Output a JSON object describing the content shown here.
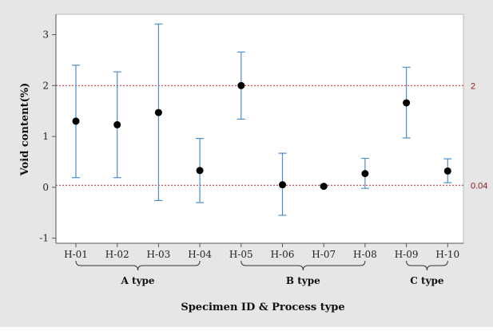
{
  "chart_data": {
    "type": "scatter",
    "title": "",
    "xlabel": "Specimen ID & Process type",
    "ylabel": "Void content(%)",
    "ylim": [
      -1.1,
      3.4
    ],
    "yticks": [
      -1,
      0,
      1,
      2,
      3
    ],
    "grid": false,
    "categories": [
      "H-01",
      "H-02",
      "H-03",
      "H-04",
      "H-05",
      "H-06",
      "H-07",
      "H-08",
      "H-09",
      "H-10"
    ],
    "series": [
      {
        "values": [
          1.3,
          1.23,
          1.47,
          0.33,
          2.0,
          0.05,
          0.02,
          0.27,
          1.66,
          0.32
        ],
        "error_low": [
          0.19,
          0.19,
          -0.26,
          -0.3,
          1.34,
          -0.55,
          0.01,
          -0.02,
          0.97,
          0.09
        ],
        "error_high": [
          2.4,
          2.27,
          3.21,
          0.96,
          2.66,
          0.67,
          0.04,
          0.57,
          2.36,
          0.56
        ]
      }
    ],
    "reference_lines": [
      {
        "value": 2,
        "label": "2"
      },
      {
        "value": 0.04,
        "label": "0.04"
      }
    ],
    "groups": [
      {
        "label": "A type",
        "from": 0,
        "to": 3
      },
      {
        "label": "B type",
        "from": 4,
        "to": 7
      },
      {
        "label": "C type",
        "from": 8,
        "to": 9
      }
    ],
    "colors": {
      "outer_background": "#e6e6e6",
      "plot_background": "#ffffff",
      "marker": "#000000",
      "error_bar": "#4a8fd0",
      "reference_line": "#b8282c",
      "reference_label": "#8b1a1a",
      "axis": "#555555"
    }
  }
}
